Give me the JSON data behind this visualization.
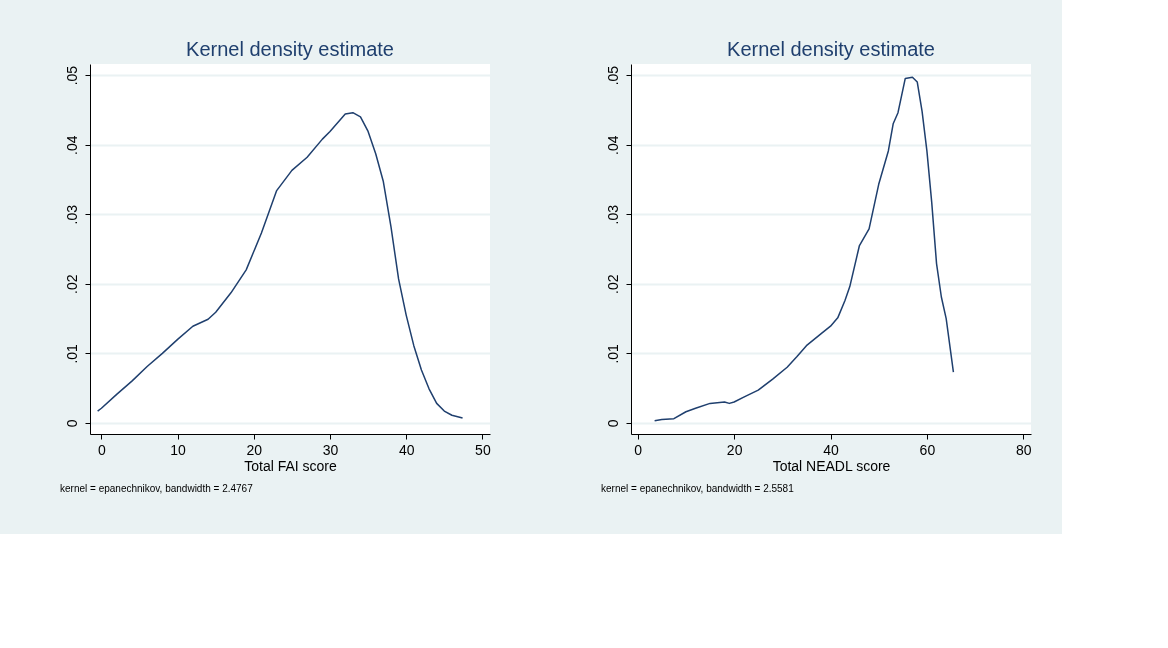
{
  "chart_data": [
    {
      "type": "line",
      "title": "Kernel density estimate",
      "xlabel": "Total FAI  score",
      "annotations": [
        "kernel = epanechnikov, bandwidth = 2.4767"
      ],
      "x": [
        -0.5,
        0,
        2,
        4,
        6,
        8,
        10,
        12,
        14,
        15,
        17,
        19,
        21,
        23,
        25,
        27,
        29,
        30,
        32,
        33,
        34,
        35,
        36,
        37,
        38,
        39,
        40,
        41,
        42,
        43,
        44,
        45,
        46,
        47.4
      ],
      "series": [
        {
          "color": "#1f3f6e",
          "values": [
            0.0017,
            0.0021,
            0.0041,
            0.006,
            0.0081,
            0.01,
            0.012,
            0.0139,
            0.0149,
            0.0159,
            0.0187,
            0.022,
            0.0273,
            0.0334,
            0.0363,
            0.0382,
            0.0408,
            0.0419,
            0.0444,
            0.0446,
            0.044,
            0.0419,
            0.0387,
            0.0347,
            0.0282,
            0.0207,
            0.0155,
            0.0111,
            0.0076,
            0.0049,
            0.0028,
            0.0017,
            0.0011,
            0.0007
          ]
        }
      ],
      "xlim": [
        -1.5,
        51
      ],
      "xticks": [
        0,
        10,
        20,
        30,
        40,
        50
      ],
      "ylim": [
        -0.0016,
        0.0516
      ],
      "yticks": [
        0,
        {
          "value": 0.01,
          "label": ".01"
        },
        {
          "value": 0.02,
          "label": ".02"
        },
        {
          "value": 0.03,
          "label": ".03"
        },
        {
          "value": 0.04,
          "label": ".04"
        },
        {
          "value": 0.05,
          "label": ".05"
        }
      ],
      "grid": "y",
      "line_style": "solid"
    },
    {
      "type": "line",
      "title": "Kernel density estimate",
      "xlabel": "Total NEADL  score",
      "annotations": [
        "kernel = epanechnikov, bandwidth = 2.5581"
      ],
      "x": [
        3.5,
        5,
        7.5,
        10,
        12,
        15,
        18,
        19,
        20,
        22,
        25,
        28,
        31,
        33,
        35,
        38,
        40,
        41.5,
        43,
        44,
        46,
        48,
        50,
        52,
        53,
        54,
        55.5,
        57,
        58,
        59,
        60,
        61,
        62,
        63,
        64,
        65.5
      ],
      "series": [
        {
          "color": "#1f3f6e",
          "values": [
            0.0003,
            0.0005,
            0.0006,
            0.0016,
            0.0021,
            0.0028,
            0.003,
            0.0028,
            0.003,
            0.0037,
            0.0047,
            0.0063,
            0.008,
            0.0095,
            0.0111,
            0.0128,
            0.0139,
            0.0151,
            0.0176,
            0.0196,
            0.0255,
            0.0279,
            0.0343,
            0.0391,
            0.043,
            0.0446,
            0.0495,
            0.0497,
            0.049,
            0.0448,
            0.0391,
            0.0317,
            0.0229,
            0.0181,
            0.015,
            0.0073
          ]
        }
      ],
      "xlim": [
        -1.4,
        81.6
      ],
      "xticks": [
        0,
        20,
        40,
        60,
        80
      ],
      "ylim": [
        -0.0016,
        0.0516
      ],
      "yticks": [
        0,
        {
          "value": 0.01,
          "label": ".01"
        },
        {
          "value": 0.02,
          "label": ".02"
        },
        {
          "value": 0.03,
          "label": ".03"
        },
        {
          "value": 0.04,
          "label": ".04"
        },
        {
          "value": 0.05,
          "label": ".05"
        }
      ],
      "grid": "y",
      "line_style": "solid"
    }
  ]
}
